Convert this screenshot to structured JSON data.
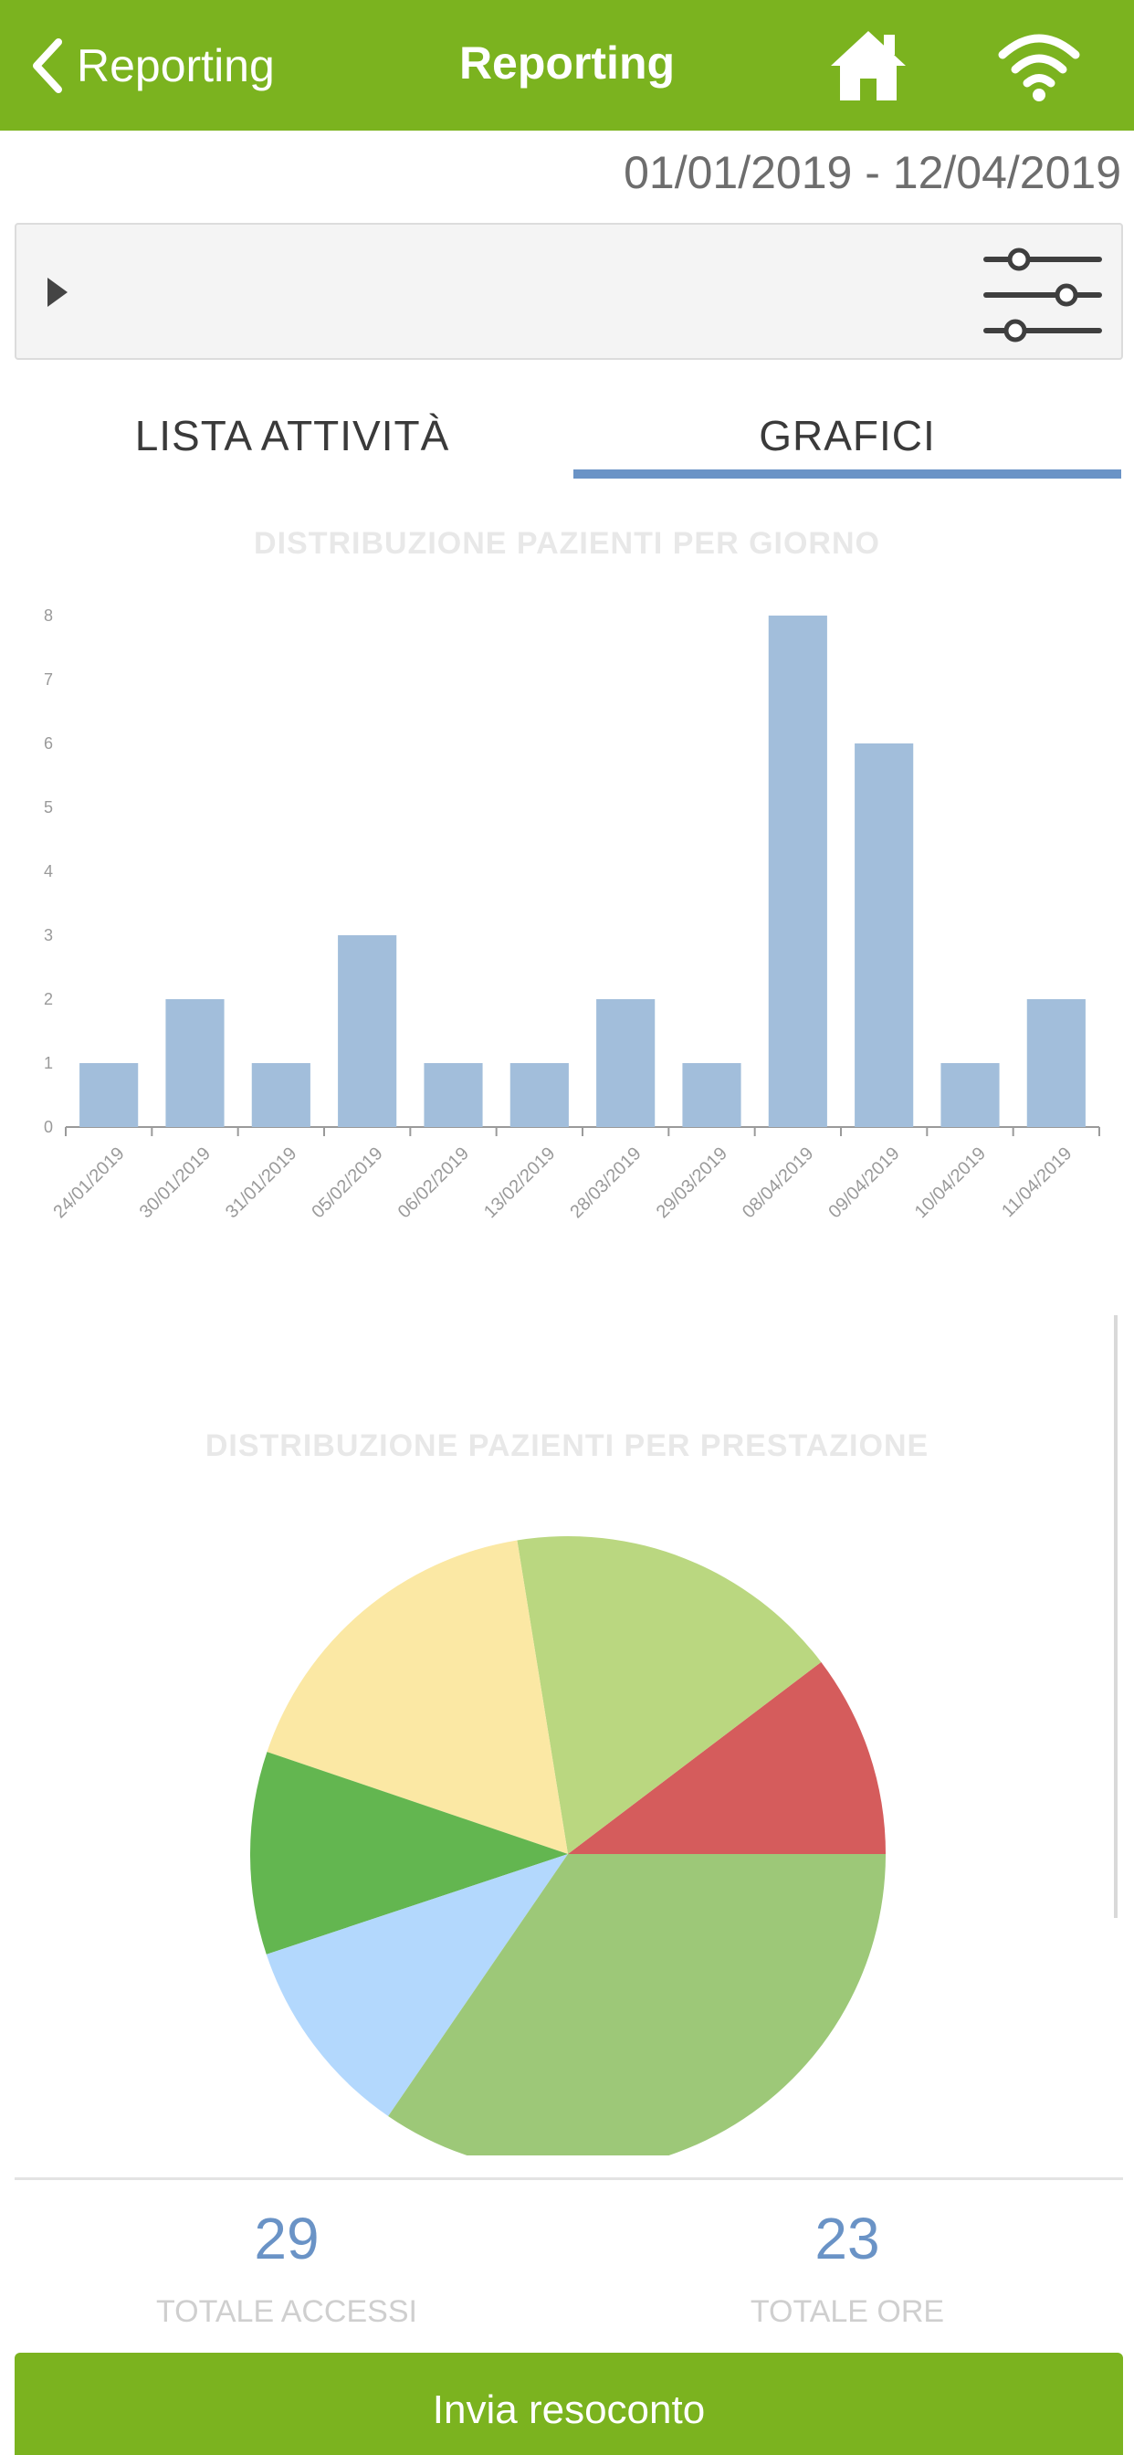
{
  "navbar": {
    "back_label": "Reporting",
    "title": "Reporting",
    "background": "#7bb31f",
    "home_icon": "home-icon",
    "wifi_icon": "wifi-icon"
  },
  "date_range": "01/01/2019 - 12/04/2019",
  "filter_bar": {
    "toggle_icon": "caret-right-icon",
    "settings_icon": "sliders-icon"
  },
  "tabs": [
    {
      "label": "LISTA ATTIVITÀ",
      "active": false
    },
    {
      "label": "GRAFICI",
      "active": true
    }
  ],
  "accent_color": "#6a93c6",
  "chart_data": [
    {
      "type": "bar",
      "title": "DISTRIBUZIONE PAZIENTI PER GIORNO",
      "categories": [
        "24/01/2019",
        "30/01/2019",
        "31/01/2019",
        "05/02/2019",
        "06/02/2019",
        "13/02/2019",
        "28/03/2019",
        "29/03/2019",
        "08/04/2019",
        "09/04/2019",
        "10/04/2019",
        "11/04/2019"
      ],
      "values": [
        1,
        2,
        1,
        3,
        1,
        1,
        2,
        1,
        8,
        6,
        1,
        2
      ],
      "ylim": [
        0,
        8
      ],
      "yticks": [
        0,
        1,
        2,
        3,
        4,
        5,
        6,
        7,
        8
      ],
      "bar_color": "#a2bedb",
      "xlabel": "",
      "ylabel": "",
      "grid": false
    },
    {
      "type": "pie",
      "title": "DISTRIBUZIONE PAZIENTI PER PRESTAZIONE",
      "values": [
        10.3,
        17.2,
        17.2,
        10.3,
        10.3,
        34.5
      ],
      "colors": [
        "#d55c5c",
        "#bad780",
        "#fbe8a4",
        "#63b650",
        "#b3d8fd",
        "#9dc878"
      ],
      "start_angle_deg": 0,
      "direction": "counterclockwise",
      "legend": "none"
    }
  ],
  "summary": {
    "total_accessi_value": "29",
    "total_accessi_label": "TOTALE ACCESSI",
    "total_ore_value": "23",
    "total_ore_label": "TOTALE ORE"
  },
  "send_button_label": "Invia resoconto"
}
